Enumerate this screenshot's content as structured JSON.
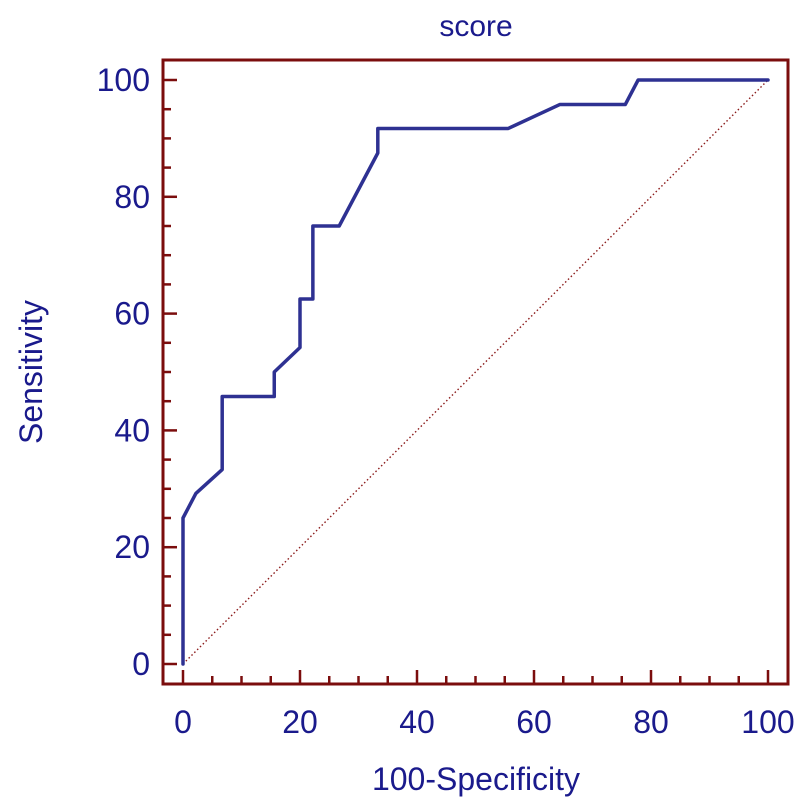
{
  "chart_data": {
    "type": "line",
    "title": "score",
    "xlabel": "100-Specificity",
    "ylabel": "Sensitivity",
    "xlim": [
      0,
      100
    ],
    "ylim": [
      0,
      100
    ],
    "x_ticks": [
      0,
      20,
      40,
      60,
      80,
      100
    ],
    "y_ticks": [
      0,
      20,
      40,
      60,
      80,
      100
    ],
    "x_tick_labels": [
      "0",
      "20",
      "40",
      "60",
      "80",
      "100"
    ],
    "y_tick_labels": [
      "0",
      "20",
      "40",
      "60",
      "80",
      "100"
    ],
    "grid": false,
    "legend": "none",
    "series": [
      {
        "x": [
          0,
          0,
          2.2,
          6.7,
          6.7,
          15.6,
          15.6,
          20,
          20,
          22.2,
          22.2,
          26.7,
          33.3,
          33.3,
          55.6,
          64.4,
          75.6,
          77.8,
          100
        ],
        "y": [
          0,
          25,
          29.2,
          33.3,
          45.8,
          45.8,
          50,
          54.2,
          62.5,
          62.5,
          75,
          75,
          87.5,
          91.7,
          91.7,
          95.8,
          95.8,
          100,
          100
        ],
        "color": "#2e3192"
      },
      {
        "x": [
          0,
          100
        ],
        "y": [
          0,
          100
        ],
        "color": "#8b1a1a",
        "style": "dotted"
      }
    ],
    "colors": {
      "frame": "#7b0d0d",
      "text": "#1a1a8c",
      "curve": "#2e3192",
      "reference": "#8b1a1a"
    }
  }
}
